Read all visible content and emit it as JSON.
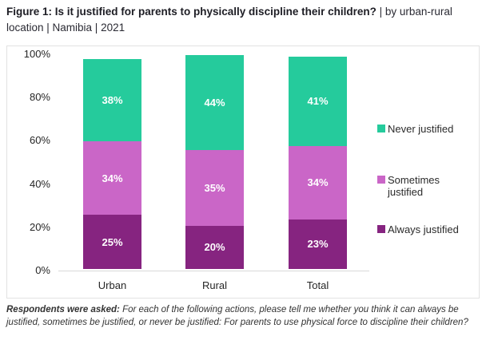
{
  "figure": {
    "title_bold": "Figure 1: Is it justified for parents to physically discipline their children?",
    "title_rest": " | by urban-rural location | Namibia | 2021"
  },
  "chart_data": {
    "type": "bar",
    "subtype": "stacked_percentage",
    "title": "Figure 1: Is it justified for parents to physically discipline their children? | by urban-rural location | Namibia | 2021",
    "categories": [
      "Urban",
      "Rural",
      "Total"
    ],
    "series": [
      {
        "name": "Always justified",
        "color": "#862480",
        "values": [
          25,
          20,
          23
        ]
      },
      {
        "name": "Sometimes justified",
        "color": "#ca66c7",
        "values": [
          34,
          35,
          34
        ]
      },
      {
        "name": "Never justified",
        "color": "#25cb9c",
        "values": [
          38,
          44,
          41
        ]
      }
    ],
    "stack_order": "bottom-to-top",
    "value_suffix": "%",
    "yticks": [
      "0%",
      "20%",
      "40%",
      "60%",
      "80%",
      "100%"
    ],
    "ytick_values": [
      0,
      20,
      40,
      60,
      80,
      100
    ],
    "ylim": [
      0,
      100
    ],
    "grid": false,
    "legend_position": "right",
    "legend_order_top_to_bottom": [
      "Never justified",
      "Sometimes justified",
      "Always justified"
    ]
  },
  "footnote": {
    "lead": "Respondents were asked:",
    "text": " For each of the following actions, please tell me whether you think it can always be justified, sometimes be justified, or never be justified: For parents to use physical force to discipline their children?"
  }
}
